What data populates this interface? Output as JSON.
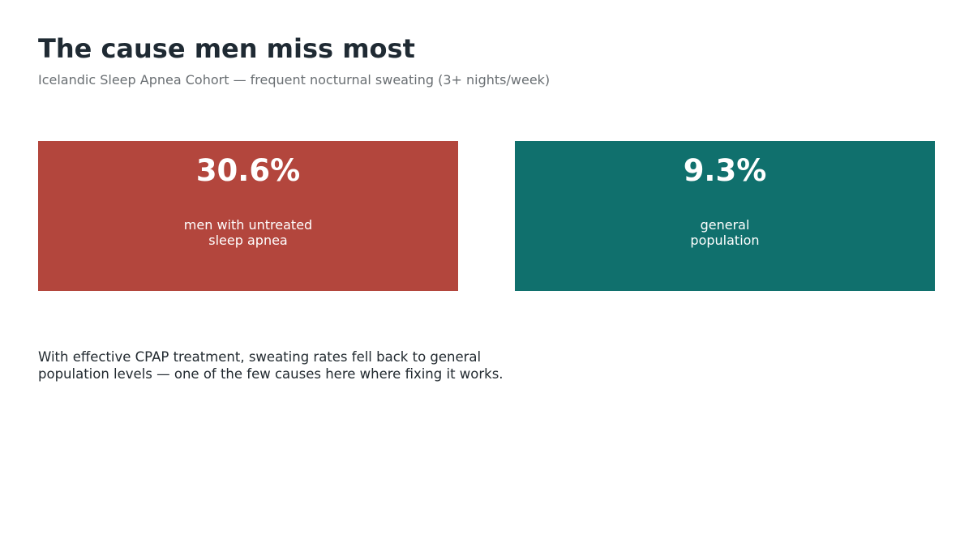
{
  "header": {
    "title": "The cause men miss most",
    "subtitle": "Icelandic Sleep Apnea Cohort — frequent nocturnal sweating (3+ nights/week)"
  },
  "stats": [
    {
      "value": "30.6%",
      "label_lines": [
        "men with untreated",
        "sleep apnea"
      ],
      "color": "#b3463d"
    },
    {
      "value": "9.3%",
      "label_lines": [
        "general",
        "population"
      ],
      "color": "#10706d"
    }
  ],
  "note": {
    "lines": [
      "With effective CPAP treatment, sweating rates fell back to general",
      "population levels — one of the few causes here where fixing it works."
    ]
  }
}
